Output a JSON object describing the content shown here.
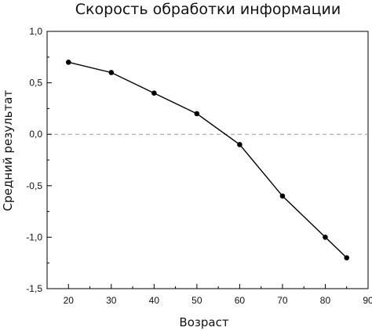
{
  "chart_data": {
    "type": "line",
    "title": "Скорость обработки информации",
    "xlabel": "Возраст",
    "ylabel": "Средний результат",
    "xlim": [
      15,
      90
    ],
    "ylim": [
      -1.5,
      1.0
    ],
    "x_ticks": [
      20,
      30,
      40,
      50,
      60,
      70,
      80,
      90
    ],
    "x_tick_labels": [
      "20",
      "30",
      "40",
      "50",
      "60",
      "70",
      "80",
      "90"
    ],
    "y_ticks": [
      1.0,
      0.5,
      0.0,
      -0.5,
      -1.0,
      -1.5
    ],
    "y_tick_labels": [
      "1,0",
      "0,5",
      "0,0",
      "-0,5",
      "-1,0",
      "-1,5"
    ],
    "reference_line": {
      "y": 0.0,
      "style": "dashed",
      "color": "#9a9a9a"
    },
    "series": [
      {
        "x": [
          20,
          30,
          40,
          50,
          60,
          70,
          80,
          85
        ],
        "y": [
          0.7,
          0.6,
          0.4,
          0.2,
          -0.1,
          -0.6,
          -1.0,
          -1.2
        ],
        "color": "#000000",
        "marker": "circle"
      }
    ],
    "grid": false,
    "legend": "none"
  }
}
